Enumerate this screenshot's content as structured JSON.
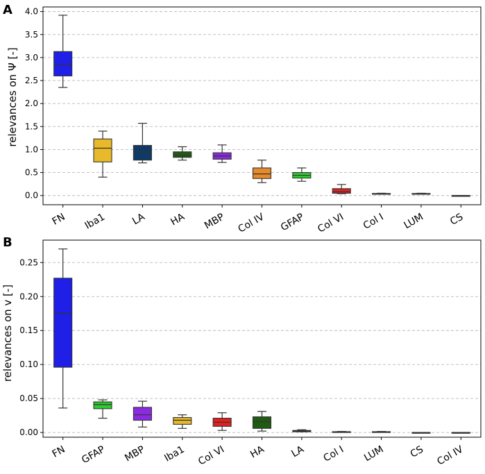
{
  "chart_data": [
    {
      "panel": "A",
      "type": "boxplot",
      "ylabel": "relevances on Ψ [-]",
      "ylim": [
        -0.2,
        4.1
      ],
      "yticks": [
        0.0,
        0.5,
        1.0,
        1.5,
        2.0,
        2.5,
        3.0,
        3.5,
        4.0
      ],
      "ytick_labels": [
        "0.0",
        "0.5",
        "1.0",
        "1.5",
        "2.0",
        "2.5",
        "3.0",
        "3.5",
        "4.0"
      ],
      "grid": true,
      "categories": [
        "FN",
        "Iba1",
        "LA",
        "HA",
        "MBP",
        "Col IV",
        "GFAP",
        "Col VI",
        "Col I",
        "LUM",
        "CS"
      ],
      "colors": [
        "#1f1fe8",
        "#e8b92a",
        "#0f3a66",
        "#1f5c12",
        "#8a2be2",
        "#e8892a",
        "#2ecc2e",
        "#e02020",
        "#2f2f2f",
        "#2f2f2f",
        "#2f2f2f"
      ],
      "boxes": [
        {
          "min": 2.35,
          "q1": 2.6,
          "median": 2.85,
          "q3": 3.13,
          "max": 3.92
        },
        {
          "min": 0.4,
          "q1": 0.73,
          "median": 1.03,
          "q3": 1.23,
          "max": 1.4
        },
        {
          "min": 0.71,
          "q1": 0.77,
          "median": 0.95,
          "q3": 1.09,
          "max": 1.57
        },
        {
          "min": 0.77,
          "q1": 0.83,
          "median": 0.87,
          "q3": 0.95,
          "max": 1.06
        },
        {
          "min": 0.72,
          "q1": 0.79,
          "median": 0.86,
          "q3": 0.93,
          "max": 1.1
        },
        {
          "min": 0.28,
          "q1": 0.37,
          "median": 0.47,
          "q3": 0.6,
          "max": 0.77
        },
        {
          "min": 0.31,
          "q1": 0.38,
          "median": 0.44,
          "q3": 0.5,
          "max": 0.6
        },
        {
          "min": 0.04,
          "q1": 0.05,
          "median": 0.08,
          "q3": 0.15,
          "max": 0.24
        },
        {
          "min": 0.03,
          "q1": 0.035,
          "median": 0.04,
          "q3": 0.045,
          "max": 0.05
        },
        {
          "min": 0.03,
          "q1": 0.035,
          "median": 0.04,
          "q3": 0.045,
          "max": 0.05
        },
        {
          "min": 0.0,
          "q1": 0.0,
          "median": 0.0,
          "q3": 0.0,
          "max": 0.0
        }
      ]
    },
    {
      "panel": "B",
      "type": "boxplot",
      "ylabel": "relevances on v [-]",
      "ylim": [
        -0.007,
        0.283
      ],
      "yticks": [
        0.0,
        0.05,
        0.1,
        0.15,
        0.2,
        0.25
      ],
      "ytick_labels": [
        "0.00",
        "0.05",
        "0.10",
        "0.15",
        "0.20",
        "0.25"
      ],
      "grid": true,
      "categories": [
        "FN",
        "GFAP",
        "MBP",
        "Iba1",
        "Col VI",
        "HA",
        "LA",
        "Col I",
        "LUM",
        "CS",
        "Col IV"
      ],
      "colors": [
        "#1f1fe8",
        "#2ecc2e",
        "#8a2be2",
        "#e8b92a",
        "#e02020",
        "#1f5c12",
        "#2f2f2f",
        "#2f2f2f",
        "#2f2f2f",
        "#2f2f2f",
        "#2f2f2f"
      ],
      "boxes": [
        {
          "min": 0.036,
          "q1": 0.096,
          "median": 0.175,
          "q3": 0.227,
          "max": 0.27
        },
        {
          "min": 0.021,
          "q1": 0.035,
          "median": 0.041,
          "q3": 0.045,
          "max": 0.048
        },
        {
          "min": 0.008,
          "q1": 0.018,
          "median": 0.026,
          "q3": 0.037,
          "max": 0.046
        },
        {
          "min": 0.006,
          "q1": 0.012,
          "median": 0.018,
          "q3": 0.022,
          "max": 0.026
        },
        {
          "min": 0.003,
          "q1": 0.009,
          "median": 0.015,
          "q3": 0.021,
          "max": 0.029
        },
        {
          "min": 0.002,
          "q1": 0.006,
          "median": 0.016,
          "q3": 0.023,
          "max": 0.031
        },
        {
          "min": 0.001,
          "q1": 0.001,
          "median": 0.002,
          "q3": 0.003,
          "max": 0.004
        },
        {
          "min": 0.0005,
          "q1": 0.0008,
          "median": 0.001,
          "q3": 0.0012,
          "max": 0.0015
        },
        {
          "min": 0.0005,
          "q1": 0.0008,
          "median": 0.001,
          "q3": 0.0012,
          "max": 0.0015
        },
        {
          "min": 0.0,
          "q1": 0.0,
          "median": 0.0,
          "q3": 0.0,
          "max": 0.0
        },
        {
          "min": 0.0,
          "q1": 0.0,
          "median": 0.0,
          "q3": 0.0,
          "max": 0.0
        }
      ]
    }
  ]
}
